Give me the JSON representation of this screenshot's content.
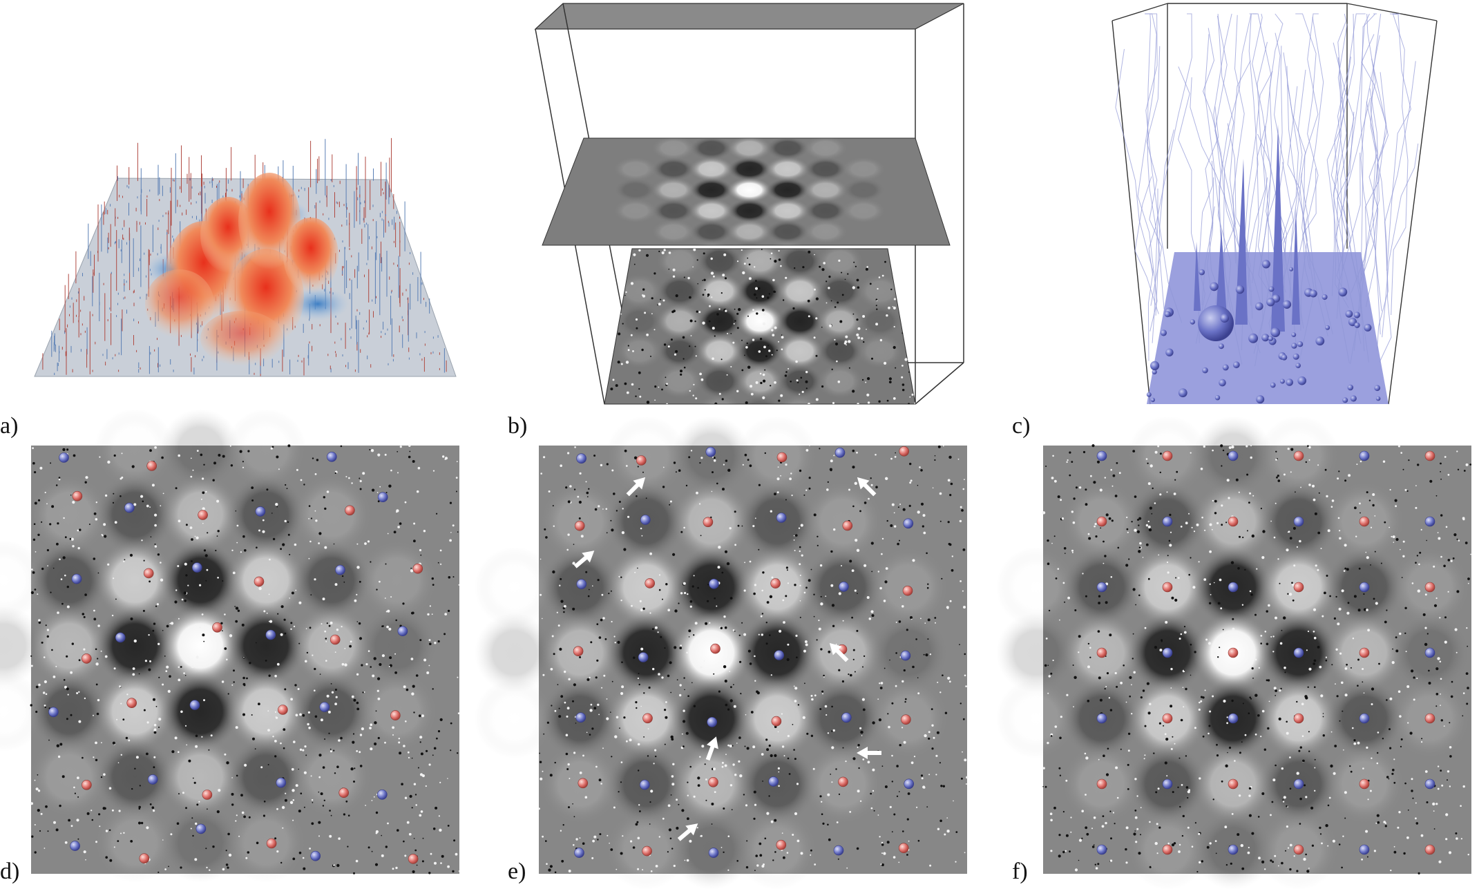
{
  "figure": {
    "panels": [
      {
        "id": "a",
        "label": "a)"
      },
      {
        "id": "b",
        "label": "b)"
      },
      {
        "id": "c",
        "label": "c)"
      },
      {
        "id": "d",
        "label": "d)"
      },
      {
        "id": "e",
        "label": "e)"
      },
      {
        "id": "f",
        "label": "f)"
      }
    ]
  },
  "colors": {
    "positive_sphere": "#e0736e",
    "negative_sphere": "#6f78c8",
    "surface_high": "#e03a25",
    "surface_low": "#4a86c8",
    "field_tubes": "#6a72c6",
    "box_edge": "#222222",
    "arrow": "#ffffff"
  },
  "icons": {
    "annotation_arrow": "white-arrow-icon",
    "charge_positive": "red-sphere-icon",
    "charge_negative": "blue-sphere-icon"
  }
}
